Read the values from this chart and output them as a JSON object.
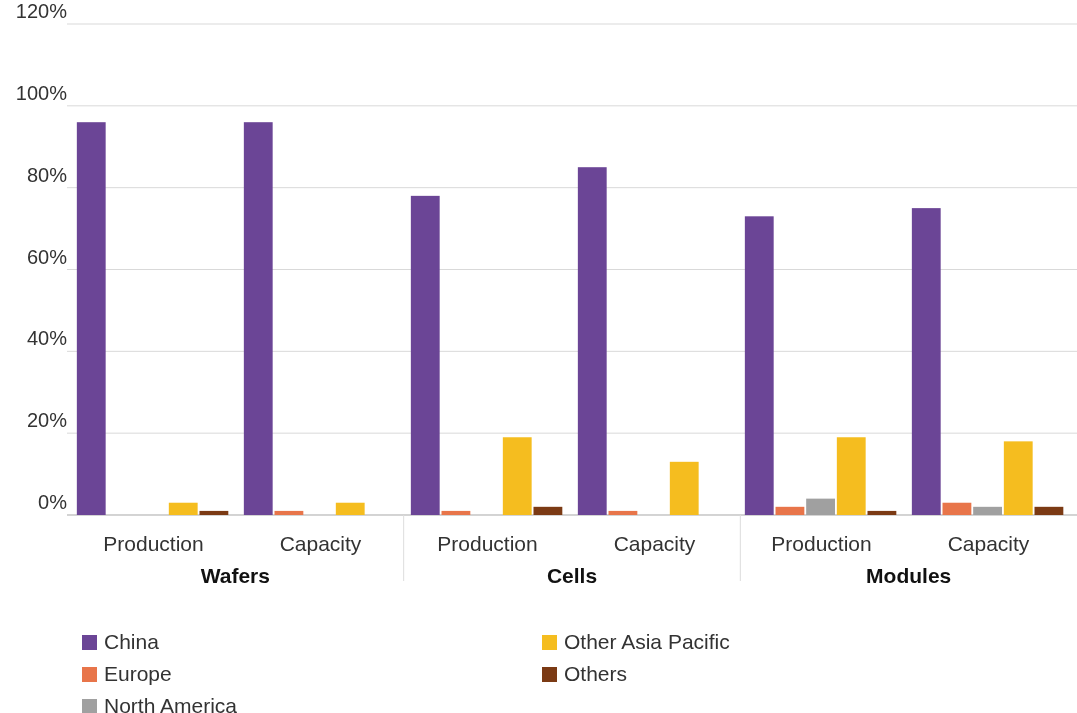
{
  "chart_data": {
    "type": "bar",
    "categories": [
      "Production",
      "Capacity",
      "Production",
      "Capacity",
      "Production",
      "Capacity"
    ],
    "series": [
      {
        "name": "China",
        "color": "#6b4596",
        "values": [
          96,
          96,
          78,
          85,
          73,
          75
        ]
      },
      {
        "name": "Europe",
        "color": "#e8754a",
        "values": [
          0,
          1,
          1,
          1,
          2,
          3
        ]
      },
      {
        "name": "North America",
        "color": "#a0a0a0",
        "values": [
          0,
          0,
          0,
          0,
          4,
          2
        ]
      },
      {
        "name": "Other Asia Pacific",
        "color": "#f5bd1f",
        "values": [
          3,
          3,
          19,
          13,
          19,
          18
        ]
      },
      {
        "name": "Others",
        "color": "#7b3a14",
        "values": [
          1,
          0,
          2,
          0,
          1,
          2
        ]
      }
    ],
    "annotations": [
      "Wafers",
      "Cells",
      "Modules"
    ],
    "ylim": [
      0,
      120
    ],
    "yticks": [
      {
        "value": 0,
        "label": "0%"
      },
      {
        "value": 20,
        "label": "20%"
      },
      {
        "value": 40,
        "label": "40%"
      },
      {
        "value": 60,
        "label": "60%"
      },
      {
        "value": 80,
        "label": "80%"
      },
      {
        "value": 100,
        "label": "100%"
      },
      {
        "value": 120,
        "label": "120%"
      }
    ],
    "grid": "y",
    "legend": "bottom"
  }
}
